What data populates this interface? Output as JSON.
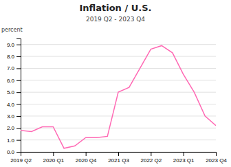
{
  "chart_data": {
    "type": "line",
    "title": "Inflation / U.S.",
    "subtitle": "2019 Q2 - 2023 Q4",
    "y_label": "percent",
    "categories": [
      "2019 Q2",
      null,
      null,
      "2020 Q1",
      null,
      null,
      "2020 Q4",
      null,
      null,
      "2021 Q3",
      null,
      null,
      "2022 Q2",
      null,
      null,
      "2023 Q1",
      null,
      null,
      "2023 Q4"
    ],
    "values": [
      1.8,
      1.7,
      2.1,
      2.1,
      0.3,
      0.5,
      1.2,
      1.2,
      1.3,
      5.0,
      5.4,
      7.0,
      8.6,
      8.9,
      8.3,
      6.5,
      5.0,
      3.0,
      2.2
    ],
    "color": "#ff69b4",
    "ylim": [
      0.0,
      9.5
    ],
    "yticks": [
      {
        "value": 0.0,
        "label": "0.0"
      },
      {
        "value": 1.0,
        "label": "1.0"
      },
      {
        "value": 2.0,
        "label": "2.0"
      },
      {
        "value": 3.0,
        "label": "3.0"
      },
      {
        "value": 4.0,
        "label": "4.0"
      },
      {
        "value": 5.0,
        "label": "5.0"
      },
      {
        "value": 6.0,
        "label": "6.0"
      },
      {
        "value": 7.0,
        "label": "7.0"
      },
      {
        "value": 8.0,
        "label": "8.0"
      },
      {
        "value": 9.0,
        "label": "9.0"
      }
    ],
    "grid": true
  }
}
